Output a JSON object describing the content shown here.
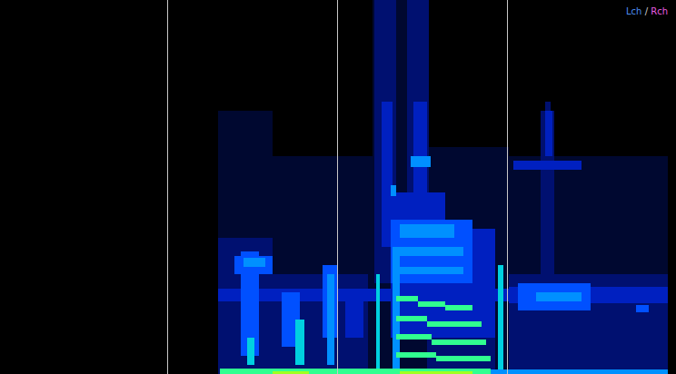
{
  "chart_data": {
    "type": "heatmap",
    "xlim": [
      0,
      744
    ],
    "ylim": [
      0,
      412
    ],
    "xticks": [
      184,
      371,
      558
    ],
    "grid": true,
    "tick_labels": false,
    "legend": "top-right",
    "legend_separator": "/",
    "series": [
      {
        "name": "Lch",
        "color": "#4d8ef0"
      },
      {
        "name": "Rch",
        "color": "#e85ce0"
      }
    ],
    "zlim": [
      0,
      10
    ],
    "cells": [
      [
        240,
        300,
        0,
        290,
        1
      ],
      [
        300,
        410,
        0,
        240,
        1
      ],
      [
        410,
        470,
        0,
        412,
        1
      ],
      [
        470,
        560,
        0,
        250,
        1
      ],
      [
        560,
        735,
        0,
        240,
        1
      ],
      [
        240,
        300,
        0,
        150,
        2
      ],
      [
        300,
        405,
        0,
        110,
        2
      ],
      [
        412,
        436,
        100,
        412,
        2
      ],
      [
        448,
        472,
        60,
        412,
        2
      ],
      [
        470,
        545,
        0,
        160,
        2
      ],
      [
        560,
        735,
        0,
        110,
        2
      ],
      [
        595,
        610,
        110,
        290,
        2
      ],
      [
        600,
        606,
        180,
        300,
        2
      ],
      [
        565,
        640,
        225,
        235,
        3
      ],
      [
        240,
        560,
        80,
        94,
        3
      ],
      [
        560,
        735,
        78,
        96,
        3
      ],
      [
        420,
        432,
        180,
        300,
        3
      ],
      [
        455,
        470,
        200,
        300,
        3
      ],
      [
        420,
        490,
        140,
        200,
        3
      ],
      [
        600,
        608,
        240,
        290,
        3
      ],
      [
        380,
        400,
        40,
        80,
        3
      ],
      [
        430,
        545,
        40,
        160,
        3
      ],
      [
        258,
        300,
        110,
        130,
        4
      ],
      [
        265,
        285,
        20,
        135,
        4
      ],
      [
        310,
        330,
        30,
        90,
        4
      ],
      [
        355,
        372,
        40,
        120,
        4
      ],
      [
        570,
        650,
        70,
        100,
        4
      ],
      [
        700,
        714,
        68,
        76,
        4
      ],
      [
        430,
        520,
        100,
        170,
        4
      ],
      [
        268,
        292,
        118,
        128,
        5
      ],
      [
        430,
        436,
        196,
        208,
        5
      ],
      [
        452,
        474,
        228,
        240,
        5
      ],
      [
        360,
        368,
        10,
        110,
        5
      ],
      [
        590,
        640,
        80,
        90,
        5
      ],
      [
        440,
        500,
        150,
        165,
        5
      ],
      [
        440,
        510,
        130,
        140,
        5
      ],
      [
        440,
        510,
        110,
        118,
        5
      ],
      [
        432,
        440,
        0,
        140,
        5
      ],
      [
        414,
        418,
        0,
        110,
        6
      ],
      [
        548,
        554,
        0,
        120,
        6
      ],
      [
        325,
        335,
        10,
        60,
        6
      ],
      [
        272,
        280,
        10,
        40,
        6
      ],
      [
        436,
        460,
        80,
        86,
        7
      ],
      [
        460,
        490,
        74,
        80,
        7
      ],
      [
        490,
        520,
        70,
        76,
        7
      ],
      [
        436,
        470,
        58,
        64,
        7
      ],
      [
        470,
        530,
        52,
        58,
        7
      ],
      [
        436,
        475,
        38,
        44,
        7
      ],
      [
        475,
        535,
        32,
        38,
        7
      ],
      [
        436,
        480,
        18,
        24,
        7
      ],
      [
        480,
        540,
        14,
        20,
        7
      ],
      [
        242,
        540,
        0,
        6,
        7
      ],
      [
        540,
        735,
        0,
        5,
        5
      ],
      [
        300,
        340,
        0,
        3,
        8
      ],
      [
        440,
        520,
        0,
        3,
        8
      ]
    ]
  }
}
